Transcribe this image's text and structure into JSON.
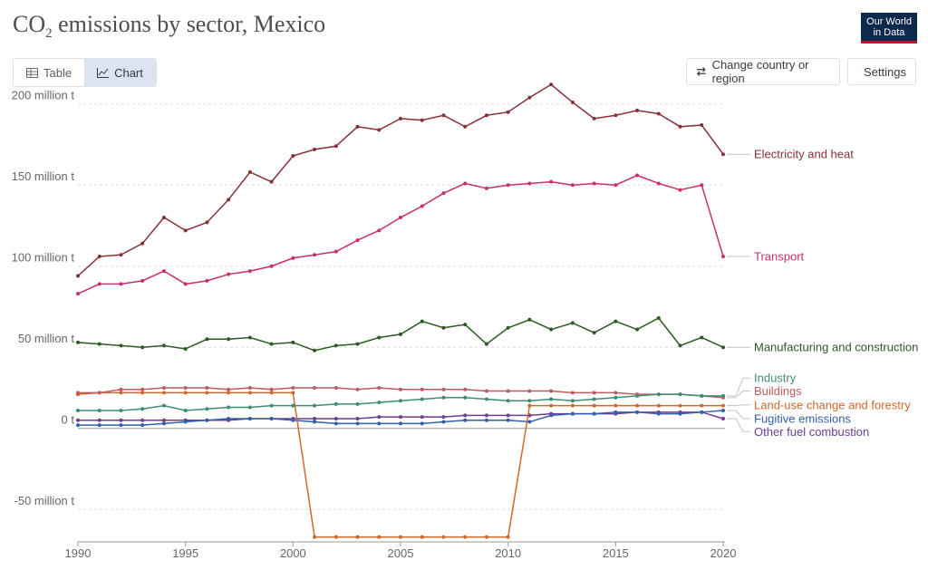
{
  "header": {
    "title_pre": "CO",
    "title_sub": "2",
    "title_post": " emissions by sector, Mexico",
    "logo_line1": "Our World",
    "logo_line2": "in Data"
  },
  "tabs": [
    {
      "label": "Table",
      "icon": "table-icon"
    },
    {
      "label": "Chart",
      "icon": "line-chart-icon"
    }
  ],
  "buttons": {
    "change_country": "Change country or region",
    "settings": "Settings"
  },
  "chart_data": {
    "type": "line",
    "x": [
      1990,
      1991,
      1992,
      1993,
      1994,
      1995,
      1996,
      1997,
      1998,
      1999,
      2000,
      2001,
      2002,
      2003,
      2004,
      2005,
      2006,
      2007,
      2008,
      2009,
      2010,
      2011,
      2012,
      2013,
      2014,
      2015,
      2016,
      2017,
      2018,
      2019,
      2020
    ],
    "xticks": [
      1990,
      1995,
      2000,
      2005,
      2010,
      2015,
      2020
    ],
    "xlim": [
      1990,
      2020
    ],
    "ylim": [
      -70,
      225
    ],
    "yticks": [
      {
        "value": 200,
        "label": "200 million t"
      },
      {
        "value": 150,
        "label": "150 million t"
      },
      {
        "value": 100,
        "label": "100 million t"
      },
      {
        "value": 50,
        "label": "50 million t"
      },
      {
        "value": 0,
        "label": "0 t"
      },
      {
        "value": -50,
        "label": "-50 million t"
      }
    ],
    "series": [
      {
        "name": "Electricity and heat",
        "color": "#883039",
        "label_y": 169,
        "values": [
          94,
          106,
          107,
          114,
          130,
          122,
          127,
          141,
          158,
          152,
          168,
          172,
          174,
          186,
          184,
          191,
          190,
          193,
          186,
          193,
          195,
          204,
          212,
          201,
          191,
          193,
          196,
          194,
          186,
          187,
          169
        ]
      },
      {
        "name": "Transport",
        "color": "#ca2e6e",
        "label_y": 106,
        "values": [
          83,
          89,
          89,
          91,
          97,
          89,
          91,
          95,
          97,
          100,
          105,
          107,
          109,
          116,
          122,
          130,
          137,
          145,
          151,
          148,
          150,
          151,
          152,
          150,
          151,
          150,
          156,
          151,
          147,
          150,
          106
        ]
      },
      {
        "name": "Manufacturing and construction",
        "color": "#2c5a23",
        "label_y": 50,
        "values": [
          53,
          52,
          51,
          50,
          51,
          49,
          55,
          55,
          56,
          52,
          53,
          48,
          51,
          52,
          56,
          58,
          66,
          62,
          64,
          52,
          62,
          67,
          61,
          65,
          59,
          66,
          61,
          68,
          51,
          56,
          50
        ]
      },
      {
        "name": "Industry",
        "color": "#3f8d6e",
        "label_y": 31,
        "values": [
          11,
          11,
          11,
          12,
          14,
          11,
          12,
          13,
          13,
          14,
          14,
          14,
          15,
          15,
          16,
          17,
          18,
          19,
          19,
          18,
          17,
          17,
          18,
          17,
          18,
          19,
          20,
          21,
          21,
          20,
          20
        ]
      },
      {
        "name": "Buildings",
        "color": "#bf5b5e",
        "label_y": 23,
        "values": [
          22,
          22,
          24,
          24,
          25,
          25,
          25,
          24,
          25,
          24,
          25,
          25,
          25,
          24,
          25,
          24,
          24,
          24,
          24,
          23,
          23,
          23,
          23,
          22,
          22,
          22,
          21,
          21,
          21,
          20,
          19
        ]
      },
      {
        "name": "Land-use change and forestry",
        "color": "#cc6a2c",
        "label_y": 14.5,
        "values": [
          21,
          22,
          22,
          22,
          22,
          22,
          22,
          22,
          22,
          22,
          22,
          -67,
          -67,
          -67,
          -67,
          -67,
          -67,
          -67,
          -67,
          -67,
          -67,
          14,
          14,
          14,
          14,
          14,
          14,
          14,
          14,
          14,
          14
        ]
      },
      {
        "name": "Fugitive emissions",
        "color": "#3360a9",
        "label_y": 6,
        "values": [
          2,
          2,
          2,
          2,
          3,
          4,
          5,
          6,
          6,
          6,
          5,
          4,
          3,
          3,
          3,
          3,
          3,
          4,
          5,
          5,
          5,
          4,
          8,
          9,
          9,
          10,
          10,
          9,
          9,
          10,
          11
        ]
      },
      {
        "name": "Other fuel combustion",
        "color": "#6d3e91",
        "label_y": -2,
        "values": [
          5,
          5,
          5,
          5,
          5,
          5,
          5,
          5,
          6,
          6,
          6,
          6,
          6,
          6,
          7,
          7,
          7,
          7,
          8,
          8,
          8,
          8,
          9,
          9,
          9,
          9,
          10,
          10,
          10,
          10,
          6
        ]
      }
    ]
  }
}
